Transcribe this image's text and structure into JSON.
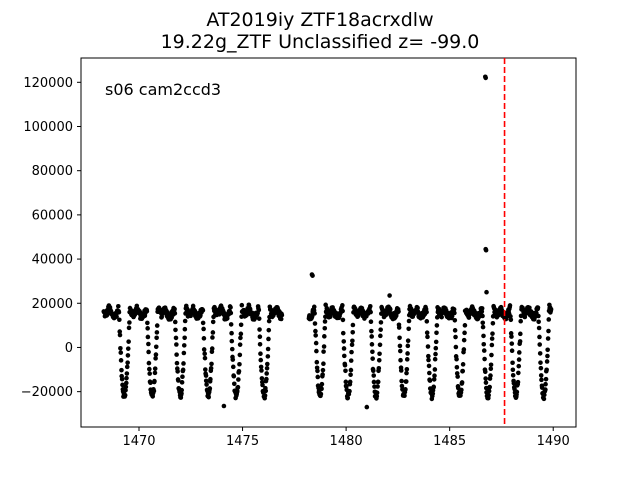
{
  "chart_data": {
    "type": "scatter",
    "title": "AT2019iy  ZTF18acrxdlw",
    "subtitle": "19.22g_ZTF Unclassified z= -99.0",
    "annotation": "s06 cam2ccd3",
    "xlabel": "",
    "ylabel": "",
    "xlim": [
      1467.2,
      1491.1
    ],
    "ylim": [
      -36000,
      131000
    ],
    "xticks": [
      1470,
      1475,
      1480,
      1485,
      1490
    ],
    "yticks": [
      -20000,
      0,
      20000,
      40000,
      60000,
      80000,
      100000,
      120000
    ],
    "grid": false,
    "marker_color": "#000000",
    "vline": {
      "x": 1487.65,
      "color": "#ff0000",
      "style": "dashed"
    },
    "light_curve": {
      "segments": [
        [
          1468.3,
          1476.9
        ],
        [
          1478.2,
          1489.9
        ]
      ],
      "period_days": 1.35,
      "phase_offset_days": 1468.55,
      "max_flux": 18000,
      "min_flux": -22000,
      "scatter": 1500,
      "samples_per_day": 60
    },
    "outliers": [
      {
        "x": 1486.72,
        "y": 122500
      },
      {
        "x": 1486.74,
        "y": 122000
      },
      {
        "x": 1486.74,
        "y": 44500
      },
      {
        "x": 1486.76,
        "y": 44000
      },
      {
        "x": 1486.78,
        "y": 25000
      },
      {
        "x": 1478.35,
        "y": 33000
      },
      {
        "x": 1478.38,
        "y": 32500
      },
      {
        "x": 1482.1,
        "y": 23500
      },
      {
        "x": 1481.0,
        "y": -27000
      },
      {
        "x": 1474.1,
        "y": -26500
      }
    ]
  }
}
